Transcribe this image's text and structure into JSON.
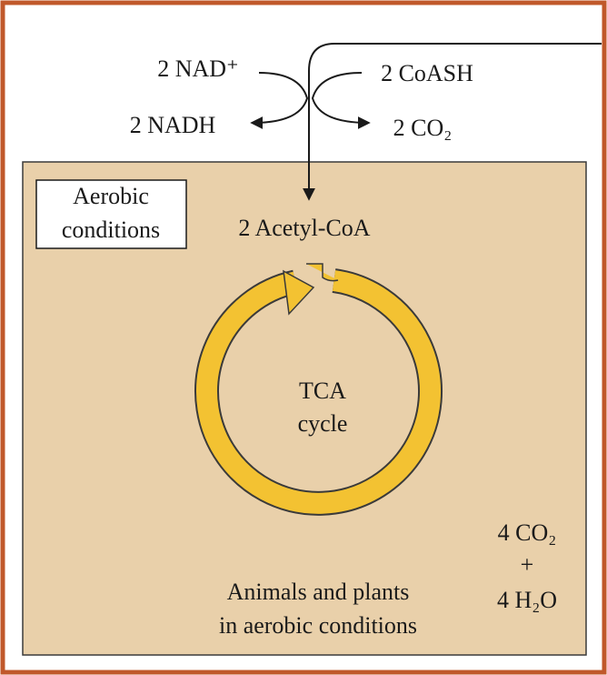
{
  "inputs": {
    "nad": "2 NAD⁺",
    "coash": "2 CoASH"
  },
  "outputs": {
    "nadh": "2 NADH",
    "co2": "2 CO₂"
  },
  "box_label": [
    "Aerobic",
    "conditions"
  ],
  "acetyl_coa": "2 Acetyl-CoA",
  "cycle": [
    "TCA",
    "cycle"
  ],
  "products": [
    "4 CO₂",
    "+",
    "4 H₂O"
  ],
  "caption": [
    "Animals and plants",
    "in aerobic conditions"
  ]
}
